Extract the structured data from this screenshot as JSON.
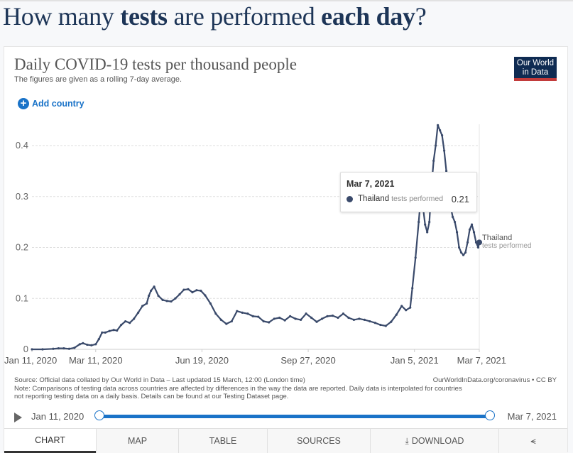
{
  "headline": {
    "part1": "How many ",
    "bold1": "tests",
    "part2": " are performed ",
    "bold2": "each day",
    "part3": "?"
  },
  "chart_header": {
    "title": "Daily COVID-19 tests per thousand people",
    "subtitle": "The figures are given as a rolling 7-day average.",
    "logo_line1": "Our World",
    "logo_line2": "in Data"
  },
  "controls": {
    "add_country": "Add country"
  },
  "chart_data": {
    "type": "line",
    "title": "Daily COVID-19 tests per thousand people",
    "xlabel": "",
    "ylabel": "",
    "x_unit": "days since Jan 11, 2020",
    "xlim": [
      0,
      421
    ],
    "ylim": [
      0,
      0.44
    ],
    "grid": true,
    "yticks": [
      0,
      0.1,
      0.2,
      0.3,
      0.4
    ],
    "ytick_labels": [
      "0",
      "0.1",
      "0.2",
      "0.3",
      "0.4"
    ],
    "xticks": [
      0,
      60,
      160,
      260,
      360,
      421
    ],
    "xtick_labels": [
      "Jan 11, 2020",
      "Mar 11, 2020",
      "Jun 19, 2020",
      "Sep 27, 2020",
      "Jan 5, 2021",
      "Mar 7, 2021"
    ],
    "series": [
      {
        "name": "Thailand",
        "metric": "tests performed",
        "color": "#3a4a6b",
        "x": [
          0,
          10,
          20,
          25,
          30,
          35,
          40,
          45,
          48,
          52,
          56,
          60,
          63,
          66,
          69,
          73,
          77,
          80,
          84,
          88,
          92,
          96,
          100,
          104,
          108,
          110,
          112,
          115,
          119,
          123,
          127,
          131,
          135,
          139,
          143,
          147,
          151,
          155,
          159,
          163,
          168,
          173,
          178,
          183,
          188,
          193,
          198,
          203,
          208,
          213,
          218,
          223,
          228,
          233,
          238,
          243,
          248,
          253,
          258,
          263,
          268,
          273,
          278,
          283,
          288,
          293,
          298,
          303,
          308,
          313,
          318,
          323,
          328,
          333,
          338,
          343,
          348,
          352,
          356,
          358,
          361,
          364,
          366,
          368,
          370,
          372,
          374,
          376,
          378,
          380,
          382,
          384,
          386,
          388,
          390,
          392,
          394,
          396,
          398,
          400,
          402,
          404,
          406,
          408,
          410,
          412,
          414,
          416,
          418,
          420,
          421
        ],
        "values": [
          0,
          0,
          0.001,
          0.002,
          0.002,
          0.001,
          0.003,
          0.01,
          0.012,
          0.009,
          0.008,
          0.01,
          0.02,
          0.033,
          0.033,
          0.036,
          0.038,
          0.037,
          0.048,
          0.055,
          0.052,
          0.06,
          0.072,
          0.085,
          0.09,
          0.105,
          0.115,
          0.123,
          0.105,
          0.097,
          0.095,
          0.094,
          0.1,
          0.108,
          0.117,
          0.118,
          0.112,
          0.116,
          0.115,
          0.106,
          0.09,
          0.07,
          0.058,
          0.05,
          0.055,
          0.075,
          0.072,
          0.07,
          0.065,
          0.064,
          0.055,
          0.053,
          0.06,
          0.062,
          0.057,
          0.065,
          0.06,
          0.058,
          0.07,
          0.062,
          0.054,
          0.06,
          0.065,
          0.066,
          0.062,
          0.07,
          0.062,
          0.058,
          0.06,
          0.058,
          0.055,
          0.052,
          0.048,
          0.046,
          0.054,
          0.068,
          0.085,
          0.077,
          0.082,
          0.12,
          0.18,
          0.25,
          0.3,
          0.28,
          0.245,
          0.23,
          0.25,
          0.32,
          0.37,
          0.4,
          0.44,
          0.43,
          0.42,
          0.39,
          0.35,
          0.31,
          0.28,
          0.26,
          0.25,
          0.23,
          0.2,
          0.19,
          0.185,
          0.19,
          0.21,
          0.235,
          0.245,
          0.23,
          0.21,
          0.2,
          0.21
        ]
      }
    ],
    "tooltip": {
      "date": "Mar 7, 2021",
      "country": "Thailand",
      "metric": "tests performed",
      "value": "0.21"
    },
    "end_label": {
      "name": "Thailand",
      "metric": "tests performed"
    }
  },
  "footer": {
    "source": "Source: Official data collated by Our World in Data – Last updated 15 March, 12:00 (London time)",
    "site": "OurWorldInData.org/coronavirus • CC BY",
    "note1": "Note: Comparisons of testing data across countries are affected by differences in the way the data are reported. Daily data is interpolated for countries",
    "note2": "not reporting testing data on a daily basis. Details can be found at our Testing Dataset page."
  },
  "timeline": {
    "start": "Jan 11, 2020",
    "end": "Mar 7, 2021"
  },
  "tabs": [
    {
      "label": "CHART",
      "active": true
    },
    {
      "label": "MAP"
    },
    {
      "label": "TABLE"
    },
    {
      "label": "SOURCES"
    },
    {
      "label": "DOWNLOAD"
    },
    {
      "label": ""
    }
  ]
}
